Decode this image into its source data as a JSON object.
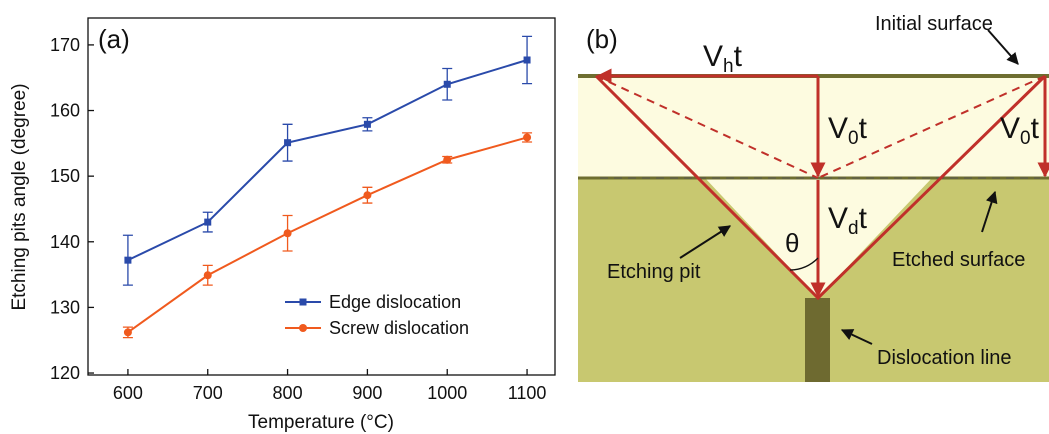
{
  "chart_data": {
    "type": "line",
    "panel_label": "(a)",
    "x_label": "Temperature (°C)",
    "y_label": "Etching pits angle (degree)",
    "x": [
      600,
      700,
      800,
      900,
      1000,
      1100
    ],
    "series": [
      {
        "name": "Edge dislocation",
        "color": "#2a4aaa",
        "marker": "square",
        "values": [
          137.2,
          143.0,
          155.1,
          157.9,
          164.0,
          167.7
        ],
        "errors": [
          3.8,
          1.5,
          2.8,
          1.0,
          2.4,
          3.6
        ]
      },
      {
        "name": "Screw dislocation",
        "color": "#f05a1e",
        "marker": "circle",
        "values": [
          126.2,
          134.9,
          141.3,
          147.1,
          152.5,
          155.9
        ],
        "errors": [
          0.8,
          1.5,
          2.7,
          1.2,
          0.5,
          0.7
        ]
      }
    ],
    "xlim": [
      550,
      1135
    ],
    "ylim": [
      119.7,
      174.1
    ],
    "xticks": [
      600,
      700,
      800,
      900,
      1000,
      1100
    ],
    "yticks": [
      120,
      130,
      140,
      150,
      160,
      170
    ],
    "legend": "lower right",
    "grid": false
  },
  "diagram": {
    "panel_label": "(b)",
    "initial_surface": "Initial surface",
    "vh": {
      "v": "V",
      "sub": "h",
      "t": "t"
    },
    "v0_center": {
      "v": "V",
      "sub": "0",
      "t": "t"
    },
    "v0_right": {
      "v": "V",
      "sub": "0",
      "t": "t"
    },
    "vd": {
      "v": "V",
      "sub": "d",
      "t": "t"
    },
    "theta": "θ",
    "etching_pit": "Etching pit",
    "etched_surface": "Etched surface",
    "dislocation_line": "Dislocation line"
  }
}
